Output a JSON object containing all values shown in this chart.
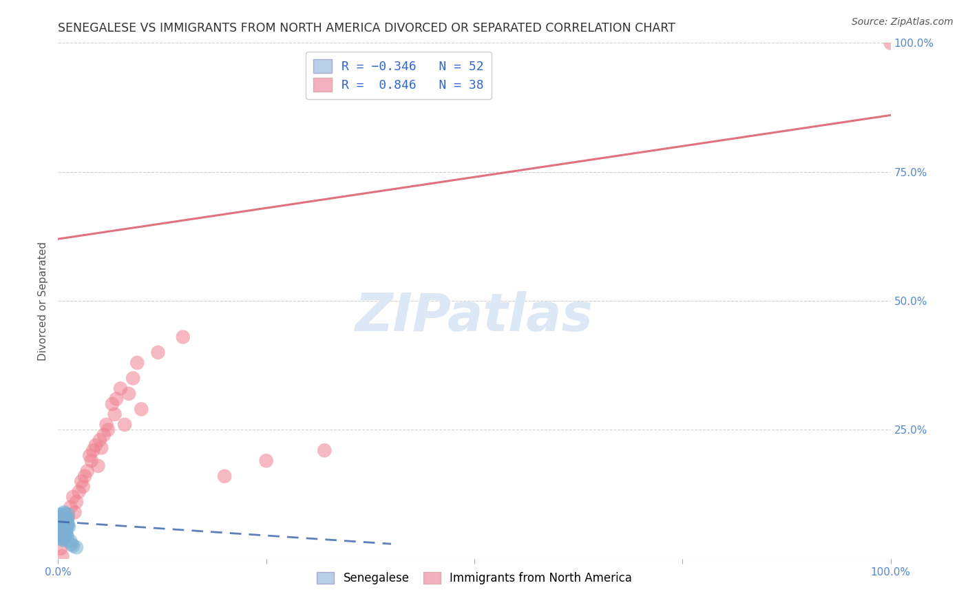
{
  "title": "SENEGALESE VS IMMIGRANTS FROM NORTH AMERICA DIVORCED OR SEPARATED CORRELATION CHART",
  "source": "Source: ZipAtlas.com",
  "ylabel": "Divorced or Separated",
  "xlim": [
    0,
    1.0
  ],
  "ylim": [
    0,
    1.0
  ],
  "xticks": [
    0.0,
    0.25,
    0.5,
    0.75,
    1.0
  ],
  "xticklabels": [
    "0.0%",
    "",
    "",
    "",
    "100.0%"
  ],
  "yticks": [
    0.0,
    0.25,
    0.5,
    0.75,
    1.0
  ],
  "yticklabels": [
    "",
    "25.0%",
    "50.0%",
    "75.0%",
    "100.0%"
  ],
  "senegalese_color": "#7bafd4",
  "immigrants_color": "#f08090",
  "trend_senegalese_color": "#4169b0",
  "trend_immigrants_color": "#e06070",
  "background_color": "#ffffff",
  "grid_color": "#cccccc",
  "watermark": "ZIPatlas",
  "watermark_color": "#dce8f5",
  "tick_color": "#5588cc",
  "legend_box1_color": "#b8d0e8",
  "legend_box2_color": "#f4b0c0",
  "senegalese_points_x": [
    0.002,
    0.003,
    0.004,
    0.005,
    0.006,
    0.007,
    0.008,
    0.009,
    0.01,
    0.011,
    0.003,
    0.004,
    0.005,
    0.006,
    0.007,
    0.008,
    0.009,
    0.01,
    0.011,
    0.012,
    0.002,
    0.003,
    0.004,
    0.005,
    0.006,
    0.007,
    0.008,
    0.009,
    0.01,
    0.004,
    0.005,
    0.006,
    0.007,
    0.008,
    0.009,
    0.01,
    0.011,
    0.003,
    0.004,
    0.005,
    0.006,
    0.007,
    0.008,
    0.009,
    0.01,
    0.011,
    0.012,
    0.013,
    0.015,
    0.016,
    0.018,
    0.022
  ],
  "senegalese_points_y": [
    0.055,
    0.068,
    0.045,
    0.072,
    0.06,
    0.08,
    0.05,
    0.075,
    0.065,
    0.07,
    0.048,
    0.082,
    0.042,
    0.078,
    0.058,
    0.088,
    0.052,
    0.076,
    0.062,
    0.066,
    0.044,
    0.086,
    0.054,
    0.04,
    0.074,
    0.064,
    0.05,
    0.07,
    0.046,
    0.056,
    0.08,
    0.036,
    0.06,
    0.072,
    0.048,
    0.068,
    0.078,
    0.042,
    0.084,
    0.038,
    0.064,
    0.09,
    0.052,
    0.076,
    0.058,
    0.044,
    0.086,
    0.062,
    0.034,
    0.028,
    0.025,
    0.022
  ],
  "immigrants_points_x": [
    0.003,
    0.005,
    0.008,
    0.012,
    0.015,
    0.018,
    0.02,
    0.022,
    0.025,
    0.028,
    0.03,
    0.032,
    0.035,
    0.038,
    0.04,
    0.042,
    0.045,
    0.048,
    0.05,
    0.052,
    0.055,
    0.058,
    0.06,
    0.065,
    0.068,
    0.07,
    0.075,
    0.08,
    0.085,
    0.09,
    0.095,
    0.1,
    0.12,
    0.15,
    0.2,
    0.25,
    0.32,
    1.0
  ],
  "immigrants_points_y": [
    0.02,
    0.005,
    0.06,
    0.08,
    0.1,
    0.12,
    0.09,
    0.11,
    0.13,
    0.15,
    0.14,
    0.16,
    0.17,
    0.2,
    0.19,
    0.21,
    0.22,
    0.18,
    0.23,
    0.215,
    0.24,
    0.26,
    0.25,
    0.3,
    0.28,
    0.31,
    0.33,
    0.26,
    0.32,
    0.35,
    0.38,
    0.29,
    0.4,
    0.43,
    0.16,
    0.19,
    0.21,
    1.0
  ],
  "trend_imm_x0": 0.0,
  "trend_imm_y0": 0.62,
  "trend_imm_x1": 1.0,
  "trend_imm_y1": 0.86,
  "trend_sen_x0": 0.0,
  "trend_sen_y0": 0.072,
  "trend_sen_x1": 0.25,
  "trend_sen_y1": 0.045
}
